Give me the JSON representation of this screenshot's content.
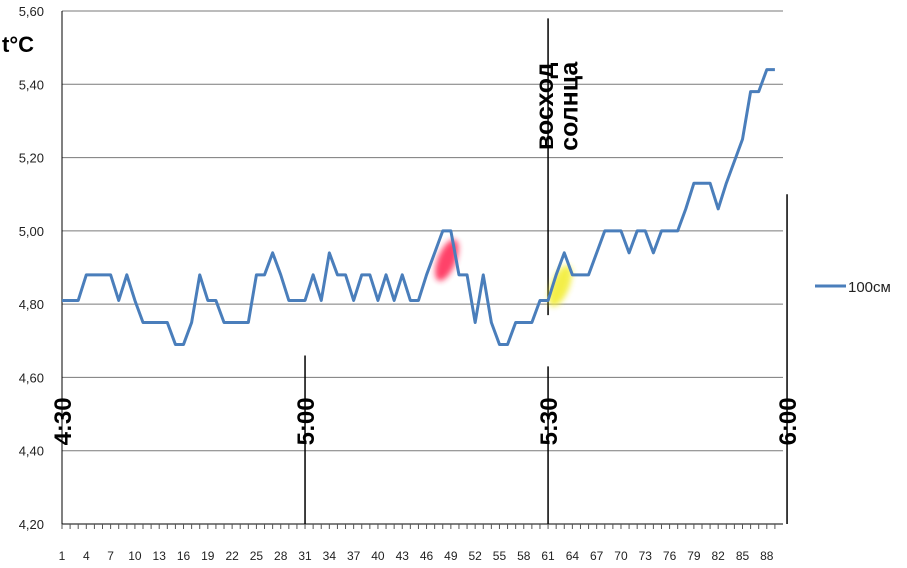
{
  "chart_data": {
    "type": "line",
    "ylabel": "t°C",
    "ylim": [
      4.2,
      5.6
    ],
    "ytick_labels": [
      "4,20",
      "4,40",
      "4,60",
      "4,80",
      "5,00",
      "5,20",
      "5,40",
      "5,60"
    ],
    "xlim": [
      1,
      90
    ],
    "xtick_labels": [
      "1",
      "4",
      "7",
      "10",
      "13",
      "16",
      "19",
      "22",
      "25",
      "28",
      "31",
      "34",
      "37",
      "40",
      "43",
      "46",
      "49",
      "52",
      "55",
      "58",
      "61",
      "64",
      "67",
      "70",
      "73",
      "76",
      "79",
      "82",
      "85",
      "88"
    ],
    "grid": "horizontal",
    "legend_position": "right",
    "series": [
      {
        "name": "100см",
        "color": "#4a7ebb",
        "values": [
          4.81,
          4.81,
          4.81,
          4.88,
          4.88,
          4.88,
          4.88,
          4.81,
          4.88,
          4.81,
          4.75,
          4.75,
          4.75,
          4.75,
          4.69,
          4.69,
          4.75,
          4.88,
          4.81,
          4.81,
          4.75,
          4.75,
          4.75,
          4.75,
          4.88,
          4.88,
          4.94,
          4.88,
          4.81,
          4.81,
          4.81,
          4.88,
          4.81,
          4.94,
          4.88,
          4.88,
          4.81,
          4.88,
          4.88,
          4.81,
          4.88,
          4.81,
          4.88,
          4.81,
          4.81,
          4.88,
          4.94,
          5.0,
          5.0,
          4.88,
          4.88,
          4.75,
          4.88,
          4.75,
          4.69,
          4.69,
          4.75,
          4.75,
          4.75,
          4.81,
          4.81,
          4.88,
          4.94,
          4.88,
          4.88,
          4.88,
          4.94,
          5.0,
          5.0,
          5.0,
          4.94,
          5.0,
          5.0,
          4.94,
          5.0,
          5.0,
          5.0,
          5.06,
          5.13,
          5.13,
          5.13,
          5.06,
          5.13,
          5.19,
          5.25,
          5.38,
          5.38,
          5.44,
          5.44
        ]
      }
    ],
    "time_markers": [
      {
        "label": "4:30",
        "x": 1
      },
      {
        "label": "5:00",
        "x": 31
      },
      {
        "label": "5:30",
        "x": 61
      },
      {
        "label": "6:00",
        "x": 90.5
      }
    ],
    "annotations": [
      {
        "text": "восход",
        "x": 60.5
      },
      {
        "text": "солнца",
        "x": 63.5
      }
    ],
    "highlights": [
      {
        "color": "#ff2050",
        "x": 48.5,
        "y": 4.92
      },
      {
        "color": "#f2ec2a",
        "x": 62.5,
        "y": 4.85
      }
    ],
    "colors": {
      "line": "#4a7ebb",
      "grid": "#7a7a7a",
      "axis": "#000000"
    }
  }
}
